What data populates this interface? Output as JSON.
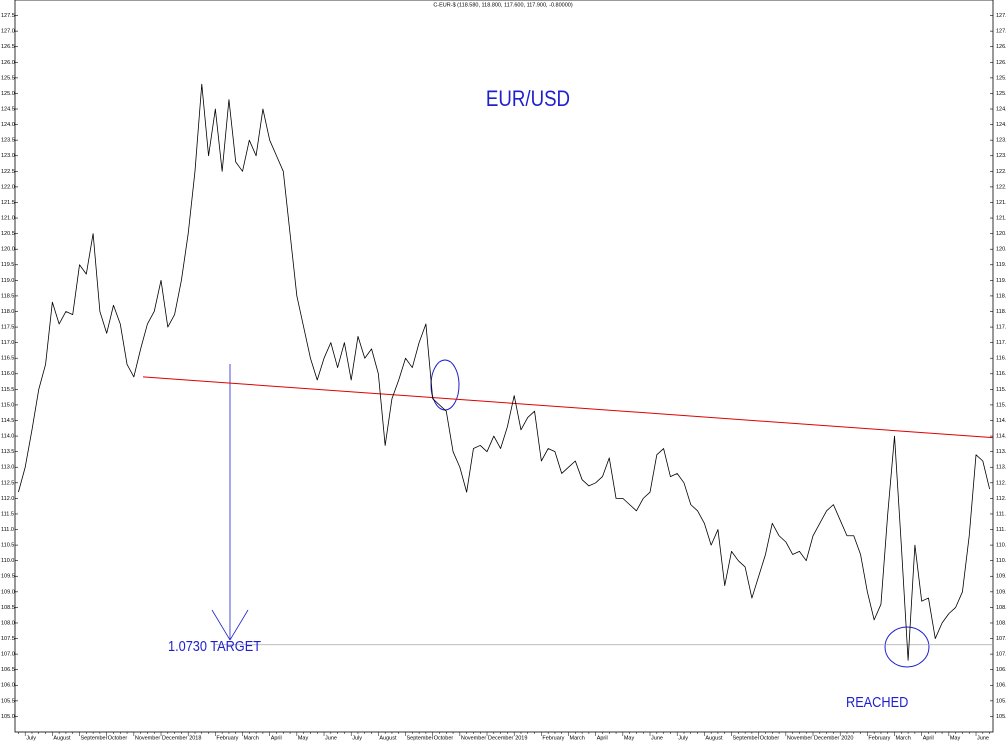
{
  "chart_data": {
    "type": "line",
    "title": "C-EUR-$ (118.580, 118.800, 117.600, 117.900, -0.80000)",
    "annotations": {
      "pair": "EUR/USD",
      "target": "1.0730 TARGET",
      "reached": "REACHED"
    },
    "annotation_color": "#1f1fd0",
    "trend_line": {
      "color": "#e00000",
      "values": [
        115.9,
        113.95
      ]
    },
    "target_line": {
      "color": "#a8a8a8",
      "value": 107.3
    },
    "categories": [
      null,
      "July",
      null,
      null,
      null,
      "August",
      null,
      null,
      null,
      "September",
      null,
      null,
      null,
      "October",
      null,
      null,
      null,
      "November",
      null,
      null,
      null,
      "December",
      null,
      null,
      null,
      "2018",
      null,
      null,
      null,
      "February",
      null,
      null,
      null,
      "March",
      null,
      null,
      null,
      "April",
      null,
      null,
      null,
      "May",
      null,
      null,
      null,
      "June",
      null,
      null,
      null,
      "July",
      null,
      null,
      null,
      "August",
      null,
      null,
      null,
      "September",
      null,
      null,
      null,
      "October",
      null,
      null,
      null,
      "November",
      null,
      null,
      null,
      "December",
      null,
      null,
      null,
      "2019",
      null,
      null,
      null,
      "February",
      null,
      null,
      null,
      "March",
      null,
      null,
      null,
      "April",
      null,
      null,
      null,
      "May",
      null,
      null,
      null,
      "June",
      null,
      null,
      null,
      "July",
      null,
      null,
      null,
      "August",
      null,
      null,
      null,
      "September",
      null,
      null,
      null,
      "October",
      null,
      null,
      null,
      "November",
      null,
      null,
      null,
      "December",
      null,
      null,
      null,
      "2020",
      null,
      null,
      null,
      "February",
      null,
      null,
      null,
      "March",
      null,
      null,
      null,
      "April",
      null,
      null,
      null,
      "May",
      null,
      null,
      null,
      "June",
      null,
      null
    ],
    "series": [
      {
        "color": "#000000",
        "values": [
          112.2,
          113.0,
          114.2,
          115.5,
          116.3,
          118.3,
          117.6,
          118.0,
          117.9,
          119.5,
          119.2,
          120.5,
          118.0,
          117.3,
          118.2,
          117.6,
          116.3,
          115.9,
          116.8,
          117.6,
          118.0,
          119.0,
          117.5,
          117.9,
          119.0,
          120.5,
          122.5,
          125.3,
          123.0,
          124.5,
          122.5,
          124.8,
          122.8,
          122.5,
          123.5,
          123.0,
          124.5,
          123.5,
          123.0,
          122.5,
          120.5,
          118.5,
          117.5,
          116.5,
          115.8,
          116.5,
          117.0,
          116.2,
          117.0,
          115.8,
          117.2,
          116.5,
          116.8,
          116.0,
          113.7,
          115.2,
          115.8,
          116.5,
          116.2,
          117.0,
          117.6,
          115.2,
          115.0,
          114.8,
          113.5,
          113.0,
          112.2,
          113.6,
          113.7,
          113.5,
          114.0,
          113.6,
          114.3,
          115.3,
          114.2,
          114.6,
          114.8,
          113.2,
          113.6,
          113.5,
          112.8,
          113.0,
          113.2,
          112.6,
          112.4,
          112.5,
          112.7,
          113.3,
          112.0,
          112.0,
          111.8,
          111.6,
          112.0,
          112.2,
          113.4,
          113.6,
          112.7,
          112.8,
          112.5,
          111.8,
          111.6,
          111.2,
          110.5,
          111.0,
          109.2,
          110.3,
          110.0,
          109.8,
          108.8,
          109.5,
          110.2,
          111.2,
          110.8,
          110.6,
          110.2,
          110.3,
          110.0,
          110.8,
          111.2,
          111.6,
          111.8,
          111.3,
          110.8,
          110.8,
          110.2,
          109.0,
          108.1,
          108.6,
          111.5,
          114.0,
          110.5,
          106.8,
          110.5,
          108.7,
          108.8,
          107.5,
          108.0,
          108.3,
          108.5,
          109.0,
          110.8,
          113.4,
          113.2,
          112.3
        ]
      }
    ],
    "ylim": [
      104.5,
      128.0
    ],
    "yticks": [
      {
        "value": 105,
        "label": "105.0"
      },
      105.5,
      {
        "value": 106,
        "label": "106.0"
      },
      106.5,
      {
        "value": 107,
        "label": "107.0"
      },
      107.5,
      {
        "value": 108,
        "label": "108.0"
      },
      108.5,
      {
        "value": 109,
        "label": "109.0"
      },
      109.5,
      {
        "value": 110,
        "label": "110.0"
      },
      110.5,
      {
        "value": 111,
        "label": "111.0"
      },
      111.5,
      {
        "value": 112,
        "label": "112.0"
      },
      112.5,
      {
        "value": 113,
        "label": "113.0"
      },
      113.5,
      {
        "value": 114,
        "label": "114.0"
      },
      114.5,
      {
        "value": 115,
        "label": "115.0"
      },
      115.5,
      {
        "value": 116,
        "label": "116.0"
      },
      116.5,
      {
        "value": 117,
        "label": "117.0"
      },
      117.5,
      {
        "value": 118,
        "label": "118.0"
      },
      118.5,
      {
        "value": 119,
        "label": "119.0"
      },
      119.5,
      {
        "value": 120,
        "label": "120.0"
      },
      120.5,
      {
        "value": 121,
        "label": "121.0"
      },
      121.5,
      {
        "value": 122,
        "label": "122.0"
      },
      122.5,
      {
        "value": 123,
        "label": "123.0"
      },
      123.5,
      {
        "value": 124,
        "label": "124.0"
      },
      124.5,
      {
        "value": 125,
        "label": "125.0"
      },
      125.5,
      {
        "value": 126,
        "label": "126.0"
      },
      126.5,
      {
        "value": 127,
        "label": "127.0"
      },
      127.5
    ]
  }
}
